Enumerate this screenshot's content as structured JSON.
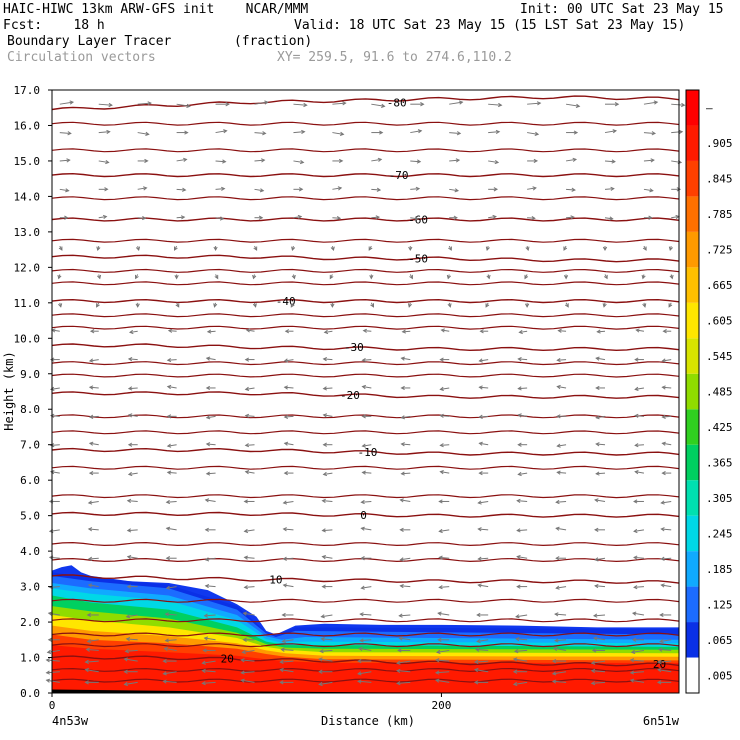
{
  "header": {
    "model_line": "HAIC-HIWC 13km ARW-GFS init    NCAR/MMM",
    "init_line": "Init: 00 UTC Sat 23 May 15",
    "fcst_line": "Fcst:    18 h",
    "valid_line": "Valid: 18 UTC Sat 23 May 15 (15 LST Sat 23 May 15)",
    "field_line": "Boundary Layer Tracer        (fraction)",
    "vector_line": "Circulation vectors",
    "xy_line": "XY= 259.5, 91.6 to 274.6,110.2"
  },
  "chart_data": {
    "type": "heatmap",
    "title": "Boundary Layer Tracer",
    "units": "(fraction)",
    "xlabel": "Distance (km)",
    "ylabel": "Height (km)",
    "xlim": [
      0,
      322
    ],
    "ylim": [
      0,
      17
    ],
    "x_ticks": [
      {
        "value": 0,
        "label": "0"
      },
      {
        "value": 200,
        "label": "200"
      }
    ],
    "x_end_labels": {
      "left": "4n53w",
      "right": "6n51w"
    },
    "y_ticks": [
      0,
      1,
      2,
      3,
      4,
      5,
      6,
      7,
      8,
      9,
      10,
      11,
      12,
      13,
      14,
      15,
      16,
      17
    ],
    "y_tick_labels": [
      "0.0",
      "1.0",
      "2.0",
      "3.0",
      "4.0",
      "5.0",
      "6.0",
      "7.0",
      "8.0",
      "9.0",
      "10.0",
      "11.0",
      "12.0",
      "13.0",
      "14.0",
      "15.0",
      "16.0",
      "17.0"
    ],
    "colorbar": {
      "labels": [
        ".005",
        ".065",
        ".125",
        ".185",
        ".245",
        ".305",
        ".365",
        ".425",
        ".485",
        ".545",
        ".605",
        ".665",
        ".725",
        ".785",
        ".845",
        ".905",
        "–"
      ],
      "colors": [
        "#ffffff",
        "#0a30e6",
        "#1c6cff",
        "#10aaff",
        "#00d8e6",
        "#00e0b0",
        "#00d060",
        "#30d020",
        "#90dc00",
        "#d8e400",
        "#ffe600",
        "#ffc000",
        "#ff9a00",
        "#ff7000",
        "#ff4000",
        "#ff1a00",
        "#ff0000"
      ]
    },
    "isotherms": [
      {
        "label": "20",
        "heights": [
          1.0,
          1.0,
          0.95,
          0.9,
          0.85,
          0.82,
          0.8
        ],
        "label_pos": [
          [
            90,
            0.97
          ],
          [
            312,
            0.82
          ]
        ]
      },
      {
        "label": "10",
        "heights": [
          3.3,
          3.25,
          3.2,
          3.18,
          3.15,
          3.15,
          3.12
        ],
        "label_pos": [
          [
            115,
            3.2
          ]
        ]
      },
      {
        "label": "0",
        "heights": [
          5.05,
          5.05,
          5.05,
          5.02,
          5.0,
          5.0,
          5.0
        ],
        "label_pos": [
          [
            160,
            5.02
          ]
        ]
      },
      {
        "label": "-10",
        "heights": [
          6.85,
          6.85,
          6.85,
          6.8,
          6.75,
          6.75,
          6.75
        ],
        "label_pos": [
          [
            162,
            6.8
          ]
        ]
      },
      {
        "label": "-20",
        "heights": [
          8.45,
          8.45,
          8.45,
          8.4,
          8.35,
          8.35,
          8.35
        ],
        "label_pos": [
          [
            153,
            8.4
          ]
        ]
      },
      {
        "label": "-30",
        "heights": [
          9.8,
          9.8,
          9.75,
          9.72,
          9.7,
          9.7,
          9.7
        ],
        "label_pos": [
          [
            155,
            9.75
          ]
        ]
      },
      {
        "label": "-40",
        "heights": [
          11.05,
          11.05,
          11.05,
          11.05,
          11.05,
          11.05,
          11.05
        ],
        "label_pos": [
          [
            120,
            11.05
          ]
        ]
      },
      {
        "label": "-50",
        "heights": [
          12.3,
          12.3,
          12.3,
          12.25,
          12.25,
          12.2,
          12.2
        ],
        "label_pos": [
          [
            188,
            12.25
          ]
        ]
      },
      {
        "label": "-60",
        "heights": [
          13.35,
          13.35,
          13.35,
          13.35,
          13.35,
          13.35,
          13.35
        ],
        "label_pos": [
          [
            188,
            13.35
          ]
        ]
      },
      {
        "label": "-70",
        "heights": [
          14.6,
          14.6,
          14.6,
          14.6,
          14.6,
          14.6,
          14.6
        ],
        "label_pos": [
          [
            178,
            14.6
          ]
        ]
      },
      {
        "label": "-80",
        "heights": [
          16.45,
          16.55,
          16.65,
          16.7,
          16.75,
          16.8,
          16.75
        ],
        "label_pos": [
          [
            177,
            16.65
          ]
        ]
      }
    ],
    "extra_isotherm_heights": [
      0.35,
      0.65,
      1.35,
      1.65,
      2.05,
      2.6,
      3.75,
      4.2,
      5.55,
      6.35,
      7.35,
      7.8,
      8.95,
      9.3,
      10.3,
      10.65,
      11.55,
      11.9,
      12.75,
      13.95,
      15.3,
      16.05
    ],
    "isotherm_x": [
      0,
      50,
      100,
      150,
      200,
      260,
      322
    ],
    "tracer_top": {
      "x": [
        0,
        5,
        10,
        15,
        20,
        40,
        60,
        80,
        95,
        105,
        110,
        115,
        125,
        140,
        170,
        200,
        240,
        280,
        322
      ],
      "height": [
        3.45,
        3.55,
        3.6,
        3.4,
        3.3,
        3.15,
        3.1,
        2.9,
        2.5,
        2.15,
        1.75,
        1.65,
        1.9,
        1.95,
        1.92,
        1.92,
        1.9,
        1.85,
        1.85
      ]
    },
    "tracer_layers": [
      {
        "value": 0.035,
        "color": "#0a30e6",
        "x": [
          0,
          20,
          60,
          95,
          110,
          115,
          125,
          322
        ],
        "height": [
          3.4,
          3.25,
          3.05,
          2.45,
          1.72,
          1.62,
          1.85,
          1.8
        ]
      },
      {
        "value": 0.095,
        "color": "#1c6cff",
        "x": [
          0,
          20,
          60,
          95,
          110,
          115,
          125,
          322
        ],
        "height": [
          3.3,
          3.15,
          2.95,
          2.35,
          1.68,
          1.58,
          1.75,
          1.65
        ]
      },
      {
        "value": 0.155,
        "color": "#10aaff",
        "x": [
          0,
          20,
          60,
          95,
          110,
          118,
          130,
          322
        ],
        "height": [
          3.1,
          2.95,
          2.75,
          2.2,
          1.6,
          1.5,
          1.58,
          1.5
        ]
      },
      {
        "value": 0.215,
        "color": "#00d8e6",
        "x": [
          0,
          20,
          60,
          95,
          110,
          118,
          130,
          322
        ],
        "height": [
          2.95,
          2.8,
          2.6,
          2.05,
          1.52,
          1.42,
          1.45,
          1.4
        ]
      },
      {
        "value": 0.335,
        "color": "#00d060",
        "x": [
          0,
          20,
          60,
          95,
          110,
          120,
          140,
          322
        ],
        "height": [
          2.75,
          2.55,
          2.35,
          1.85,
          1.45,
          1.35,
          1.35,
          1.3
        ]
      },
      {
        "value": 0.455,
        "color": "#90dc00",
        "x": [
          0,
          20,
          60,
          95,
          110,
          120,
          140,
          322
        ],
        "height": [
          2.45,
          2.3,
          2.1,
          1.7,
          1.38,
          1.28,
          1.25,
          1.22
        ]
      },
      {
        "value": 0.575,
        "color": "#ffe600",
        "x": [
          0,
          20,
          60,
          95,
          110,
          120,
          140,
          322
        ],
        "height": [
          2.2,
          2.05,
          1.85,
          1.55,
          1.3,
          1.22,
          1.15,
          1.12
        ]
      },
      {
        "value": 0.695,
        "color": "#ff9a00",
        "x": [
          0,
          20,
          60,
          95,
          110,
          120,
          140,
          322
        ],
        "height": [
          1.9,
          1.75,
          1.6,
          1.4,
          1.2,
          1.12,
          1.05,
          1.02
        ]
      },
      {
        "value": 0.815,
        "color": "#ff4000",
        "x": [
          0,
          20,
          60,
          95,
          110,
          120,
          140,
          322
        ],
        "height": [
          1.65,
          1.5,
          1.4,
          1.25,
          1.1,
          1.02,
          0.95,
          0.92
        ]
      },
      {
        "value": 0.935,
        "color": "#ff1a00",
        "x": [
          0,
          20,
          60,
          95,
          110,
          120,
          140,
          322
        ],
        "height": [
          1.35,
          1.25,
          1.15,
          1.05,
          0.95,
          0.9,
          0.85,
          0.85
        ]
      }
    ],
    "terrain": {
      "x": [
        0,
        80,
        160,
        322
      ],
      "height": [
        0.1,
        0.05,
        0.02,
        0.0
      ]
    },
    "vectors": {
      "x_columns": [
        4,
        24,
        44,
        64,
        84,
        104,
        124,
        144,
        164,
        184,
        204,
        224,
        244,
        264,
        284,
        304,
        318
      ],
      "levels": [
        0.3,
        0.6,
        0.9,
        1.2,
        1.5,
        2.2,
        3.0,
        3.8,
        4.6,
        5.4,
        6.2,
        7.0,
        7.8,
        8.6,
        9.4,
        10.2,
        11.0,
        11.8,
        12.6,
        13.4,
        14.2,
        15.0,
        15.8,
        16.6
      ],
      "direction_by_level": [
        "left",
        "left",
        "left",
        "left",
        "left",
        "left",
        "left",
        "left",
        "left",
        "left",
        "left",
        "left",
        "left",
        "left",
        "left",
        "left",
        "down",
        "down",
        "down",
        "right",
        "right",
        "right",
        "right",
        "right"
      ],
      "magnitude_by_level": [
        0.6,
        0.6,
        0.6,
        0.55,
        0.5,
        0.5,
        0.45,
        0.45,
        0.45,
        0.45,
        0.4,
        0.4,
        0.4,
        0.4,
        0.4,
        0.35,
        0.3,
        0.3,
        0.3,
        0.35,
        0.4,
        0.45,
        0.5,
        0.6
      ]
    }
  }
}
